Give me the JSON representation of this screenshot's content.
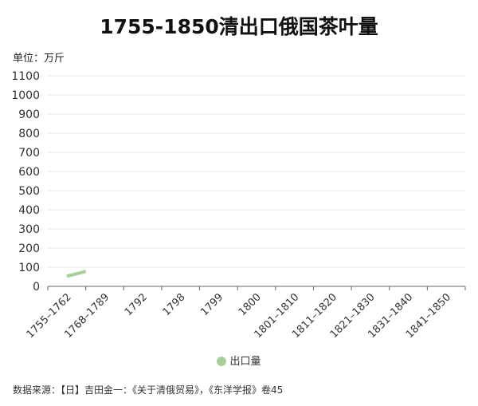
{
  "title": "1755-1850清出口俄国茶叶量",
  "unit_label": "单位：万斤",
  "source": "数据来源：【日】吉田金一：《关于清俄贸易》，《东洋学报》卷45",
  "legend": {
    "label": "出口量"
  },
  "colors": {
    "series": "#a8cf97",
    "grid": "#e8e8e8",
    "axis": "#666666"
  },
  "chart_data": {
    "type": "line",
    "categories": [
      "1755–1762",
      "1768–1789",
      "1792",
      "1798",
      "1799",
      "1800",
      "1801–1810",
      "1811–1820",
      "1821–1830",
      "1831–1840",
      "1841–1850"
    ],
    "y_ticks": [
      "0",
      "100",
      "200",
      "300",
      "400",
      "500",
      "600",
      "700",
      "800",
      "900",
      "1000",
      "1100"
    ],
    "ylim": [
      0,
      1100
    ],
    "grid": true,
    "legend_position": "bottom-center",
    "series": [
      {
        "name": "出口量",
        "segment_x": [
          0.5,
          1.0
        ],
        "segment_y": [
          53,
          78
        ]
      }
    ]
  }
}
